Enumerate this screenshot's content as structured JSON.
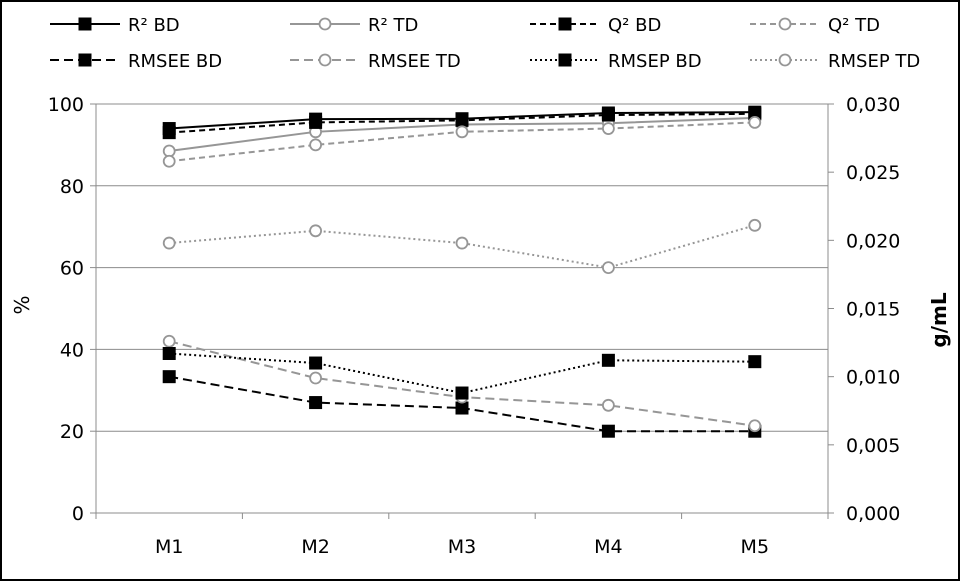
{
  "chart_data": {
    "type": "line",
    "categories": [
      "M1",
      "M2",
      "M3",
      "M4",
      "M5"
    ],
    "y_left": {
      "label": "%",
      "range": [
        0,
        100
      ],
      "ticks": [
        "0",
        "20",
        "40",
        "60",
        "80",
        "100"
      ]
    },
    "y_right": {
      "label": "g/mL",
      "range": [
        0,
        0.03
      ],
      "ticks": [
        "0,000",
        "0,005",
        "0,010",
        "0,015",
        "0,020",
        "0,025",
        "0,030"
      ]
    },
    "grid": true,
    "legend_position": "top",
    "series": [
      {
        "name": "R² BD",
        "axis": "left",
        "values": [
          94.0,
          96.3,
          96.4,
          97.8,
          98.0
        ],
        "color": "#000000",
        "dash": "solid",
        "marker": "square-filled"
      },
      {
        "name": "R² TD",
        "axis": "left",
        "values": [
          88.5,
          93.2,
          95.0,
          95.3,
          96.6
        ],
        "color": "#969696",
        "dash": "solid",
        "marker": "circle-open"
      },
      {
        "name": "Q² BD",
        "axis": "left",
        "values": [
          93.0,
          95.5,
          96.0,
          97.3,
          97.6
        ],
        "color": "#000000",
        "dash": "dashed",
        "marker": "square-filled"
      },
      {
        "name": "Q² TD",
        "axis": "left",
        "values": [
          86.0,
          90.0,
          93.2,
          94.0,
          95.5
        ],
        "color": "#969696",
        "dash": "dashed",
        "marker": "circle-open"
      },
      {
        "name": "RMSEE BD",
        "axis": "right",
        "values": [
          0.01,
          0.0081,
          0.0077,
          0.006,
          0.006
        ],
        "color": "#000000",
        "dash": "longdash",
        "marker": "square-filled"
      },
      {
        "name": "RMSEE TD",
        "axis": "right",
        "values": [
          0.0126,
          0.0099,
          0.0085,
          0.0079,
          0.0064
        ],
        "color": "#969696",
        "dash": "longdash",
        "marker": "circle-open"
      },
      {
        "name": "RMSEP BD",
        "axis": "right",
        "values": [
          0.0117,
          0.011,
          0.0088,
          0.0112,
          0.0111
        ],
        "color": "#000000",
        "dash": "dotted",
        "marker": "square-filled"
      },
      {
        "name": "RMSEP TD",
        "axis": "right",
        "values": [
          0.0198,
          0.0207,
          0.0198,
          0.018,
          0.0211
        ],
        "color": "#969696",
        "dash": "dotted",
        "marker": "circle-open"
      }
    ]
  }
}
